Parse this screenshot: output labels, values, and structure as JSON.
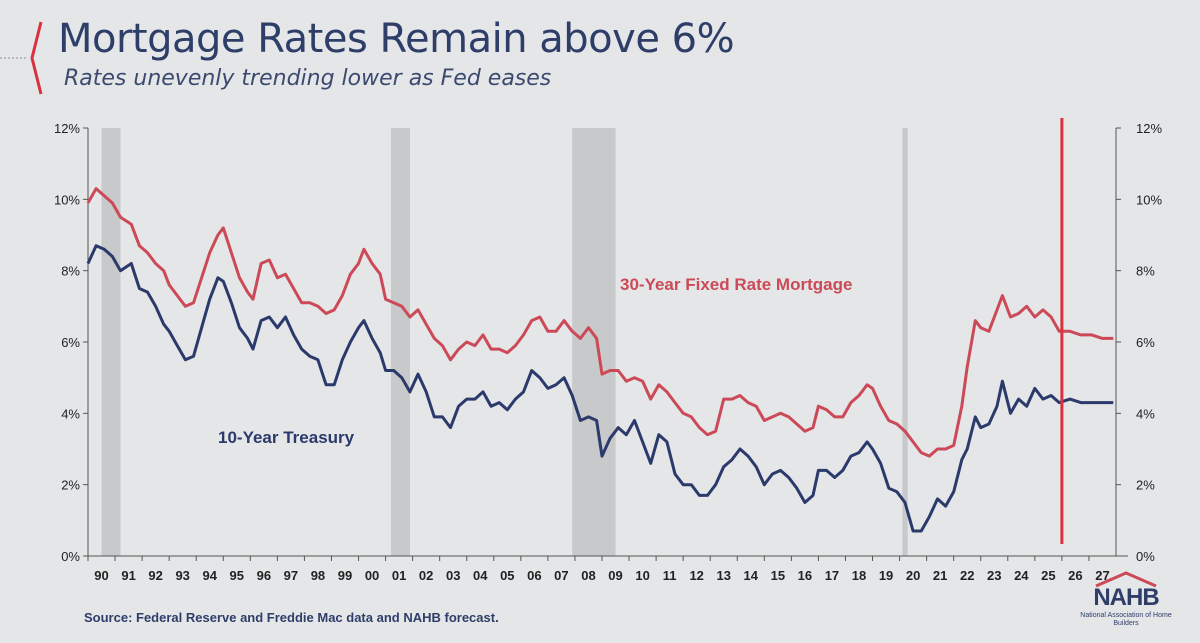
{
  "header": {
    "title": "Mortgage Rates Remain above 6%",
    "subtitle": "Rates unevenly trending lower as Fed eases"
  },
  "footer": {
    "source": "Source: Federal Reserve and Freddie Mac data and NAHB forecast.",
    "logo_text": "NAHB",
    "logo_subtext": "National Association of Home Builders"
  },
  "colors": {
    "mortgage": "#cc4a57",
    "treasury": "#2b3a6b",
    "recession": "#c7c9cb",
    "forecast_line": "#d9323d",
    "title": "#2e3e69"
  },
  "chart_data": {
    "type": "line",
    "title": "Mortgage Rates Remain above 6%",
    "subtitle": "Rates unevenly trending lower as Fed eases",
    "x_tick_labels": [
      "90",
      "91",
      "92",
      "93",
      "94",
      "95",
      "96",
      "97",
      "98",
      "99",
      "00",
      "01",
      "02",
      "03",
      "04",
      "05",
      "06",
      "07",
      "08",
      "09",
      "10",
      "11",
      "12",
      "13",
      "14",
      "15",
      "16",
      "17",
      "18",
      "19",
      "20",
      "21",
      "22",
      "23",
      "24",
      "25",
      "26",
      "27"
    ],
    "xlim": [
      1990,
      2028
    ],
    "y_ticks_left": [
      "0%",
      "2%",
      "4%",
      "6%",
      "8%",
      "10%",
      "12%"
    ],
    "y_ticks_right": [
      "0%",
      "2%",
      "4%",
      "6%",
      "8%",
      "10%",
      "12%"
    ],
    "ylim": [
      0,
      12
    ],
    "grid": false,
    "forecast_marker_x": 2026.0,
    "recession_bands": [
      [
        1990.5,
        1991.2
      ],
      [
        2001.2,
        2001.9
      ],
      [
        2007.9,
        2009.5
      ],
      [
        2020.1,
        2020.3
      ]
    ],
    "series": [
      {
        "name": "30-Year Fixed Rate Mortgage",
        "x": [
          1990.0,
          1990.3,
          1990.6,
          1990.9,
          1991.2,
          1991.6,
          1991.9,
          1992.2,
          1992.5,
          1992.8,
          1993.0,
          1993.3,
          1993.6,
          1993.9,
          1994.2,
          1994.5,
          1994.8,
          1995.0,
          1995.3,
          1995.6,
          1995.9,
          1996.1,
          1996.4,
          1996.7,
          1997.0,
          1997.3,
          1997.6,
          1997.9,
          1998.2,
          1998.5,
          1998.8,
          1999.1,
          1999.4,
          1999.7,
          2000.0,
          2000.2,
          2000.5,
          2000.8,
          2001.0,
          2001.3,
          2001.6,
          2001.9,
          2002.2,
          2002.5,
          2002.8,
          2003.1,
          2003.4,
          2003.7,
          2004.0,
          2004.3,
          2004.6,
          2004.9,
          2005.2,
          2005.5,
          2005.8,
          2006.1,
          2006.4,
          2006.7,
          2007.0,
          2007.3,
          2007.6,
          2007.9,
          2008.2,
          2008.5,
          2008.8,
          2009.0,
          2009.3,
          2009.6,
          2009.9,
          2010.2,
          2010.5,
          2010.8,
          2011.1,
          2011.4,
          2011.7,
          2012.0,
          2012.3,
          2012.6,
          2012.9,
          2013.2,
          2013.5,
          2013.8,
          2014.1,
          2014.4,
          2014.7,
          2015.0,
          2015.3,
          2015.6,
          2015.9,
          2016.2,
          2016.5,
          2016.8,
          2017.0,
          2017.3,
          2017.6,
          2017.9,
          2018.2,
          2018.5,
          2018.8,
          2019.0,
          2019.3,
          2019.6,
          2019.9,
          2020.2,
          2020.5,
          2020.8,
          2021.1,
          2021.4,
          2021.7,
          2022.0,
          2022.3,
          2022.5,
          2022.8,
          2023.0,
          2023.3,
          2023.6,
          2023.8,
          2024.1,
          2024.4,
          2024.7,
          2025.0,
          2025.3,
          2025.6,
          2025.9,
          2026.3,
          2026.7,
          2027.1,
          2027.5,
          2027.9
        ],
        "values": [
          9.9,
          10.3,
          10.1,
          9.9,
          9.5,
          9.3,
          8.7,
          8.5,
          8.2,
          8.0,
          7.6,
          7.3,
          7.0,
          7.1,
          7.8,
          8.5,
          9.0,
          9.2,
          8.5,
          7.8,
          7.4,
          7.2,
          8.2,
          8.3,
          7.8,
          7.9,
          7.5,
          7.1,
          7.1,
          7.0,
          6.8,
          6.9,
          7.3,
          7.9,
          8.2,
          8.6,
          8.2,
          7.9,
          7.2,
          7.1,
          7.0,
          6.7,
          6.9,
          6.5,
          6.1,
          5.9,
          5.5,
          5.8,
          6.0,
          5.9,
          6.2,
          5.8,
          5.8,
          5.7,
          5.9,
          6.2,
          6.6,
          6.7,
          6.3,
          6.3,
          6.6,
          6.3,
          6.1,
          6.4,
          6.1,
          5.1,
          5.2,
          5.2,
          4.9,
          5.0,
          4.9,
          4.4,
          4.8,
          4.6,
          4.3,
          4.0,
          3.9,
          3.6,
          3.4,
          3.5,
          4.4,
          4.4,
          4.5,
          4.3,
          4.2,
          3.8,
          3.9,
          4.0,
          3.9,
          3.7,
          3.5,
          3.6,
          4.2,
          4.1,
          3.9,
          3.9,
          4.3,
          4.5,
          4.8,
          4.7,
          4.2,
          3.8,
          3.7,
          3.5,
          3.2,
          2.9,
          2.8,
          3.0,
          3.0,
          3.1,
          4.2,
          5.3,
          6.6,
          6.4,
          6.3,
          6.9,
          7.3,
          6.7,
          6.8,
          7.0,
          6.7,
          6.9,
          6.7,
          6.3,
          6.3,
          6.2,
          6.2,
          6.1,
          6.1
        ]
      },
      {
        "name": "10-Year Treasury",
        "x": [
          1990.0,
          1990.3,
          1990.6,
          1990.9,
          1991.2,
          1991.6,
          1991.9,
          1992.2,
          1992.5,
          1992.8,
          1993.0,
          1993.3,
          1993.6,
          1993.9,
          1994.2,
          1994.5,
          1994.8,
          1995.0,
          1995.3,
          1995.6,
          1995.9,
          1996.1,
          1996.4,
          1996.7,
          1997.0,
          1997.3,
          1997.6,
          1997.9,
          1998.2,
          1998.5,
          1998.8,
          1999.1,
          1999.4,
          1999.7,
          2000.0,
          2000.2,
          2000.5,
          2000.8,
          2001.0,
          2001.3,
          2001.6,
          2001.9,
          2002.2,
          2002.5,
          2002.8,
          2003.1,
          2003.4,
          2003.7,
          2004.0,
          2004.3,
          2004.6,
          2004.9,
          2005.2,
          2005.5,
          2005.8,
          2006.1,
          2006.4,
          2006.7,
          2007.0,
          2007.3,
          2007.6,
          2007.9,
          2008.2,
          2008.5,
          2008.8,
          2009.0,
          2009.3,
          2009.6,
          2009.9,
          2010.2,
          2010.5,
          2010.8,
          2011.1,
          2011.4,
          2011.7,
          2012.0,
          2012.3,
          2012.6,
          2012.9,
          2013.2,
          2013.5,
          2013.8,
          2014.1,
          2014.4,
          2014.7,
          2015.0,
          2015.3,
          2015.6,
          2015.9,
          2016.2,
          2016.5,
          2016.8,
          2017.0,
          2017.3,
          2017.6,
          2017.9,
          2018.2,
          2018.5,
          2018.8,
          2019.0,
          2019.3,
          2019.6,
          2019.9,
          2020.2,
          2020.5,
          2020.8,
          2021.1,
          2021.4,
          2021.7,
          2022.0,
          2022.3,
          2022.5,
          2022.8,
          2023.0,
          2023.3,
          2023.6,
          2023.8,
          2024.1,
          2024.4,
          2024.7,
          2025.0,
          2025.3,
          2025.6,
          2025.9,
          2026.3,
          2026.7,
          2027.1,
          2027.5,
          2027.9
        ],
        "values": [
          8.2,
          8.7,
          8.6,
          8.4,
          8.0,
          8.2,
          7.5,
          7.4,
          7.0,
          6.5,
          6.3,
          5.9,
          5.5,
          5.6,
          6.4,
          7.2,
          7.8,
          7.7,
          7.1,
          6.4,
          6.1,
          5.8,
          6.6,
          6.7,
          6.4,
          6.7,
          6.2,
          5.8,
          5.6,
          5.5,
          4.8,
          4.8,
          5.5,
          6.0,
          6.4,
          6.6,
          6.1,
          5.7,
          5.2,
          5.2,
          5.0,
          4.6,
          5.1,
          4.6,
          3.9,
          3.9,
          3.6,
          4.2,
          4.4,
          4.4,
          4.6,
          4.2,
          4.3,
          4.1,
          4.4,
          4.6,
          5.2,
          5.0,
          4.7,
          4.8,
          5.0,
          4.5,
          3.8,
          3.9,
          3.8,
          2.8,
          3.3,
          3.6,
          3.4,
          3.8,
          3.2,
          2.6,
          3.4,
          3.2,
          2.3,
          2.0,
          2.0,
          1.7,
          1.7,
          2.0,
          2.5,
          2.7,
          3.0,
          2.8,
          2.5,
          2.0,
          2.3,
          2.4,
          2.2,
          1.9,
          1.5,
          1.7,
          2.4,
          2.4,
          2.2,
          2.4,
          2.8,
          2.9,
          3.2,
          3.0,
          2.6,
          1.9,
          1.8,
          1.5,
          0.7,
          0.7,
          1.1,
          1.6,
          1.4,
          1.8,
          2.7,
          3.0,
          3.9,
          3.6,
          3.7,
          4.2,
          4.9,
          4.0,
          4.4,
          4.2,
          4.7,
          4.4,
          4.5,
          4.3,
          4.4,
          4.3,
          4.3,
          4.3,
          4.3
        ]
      }
    ]
  }
}
